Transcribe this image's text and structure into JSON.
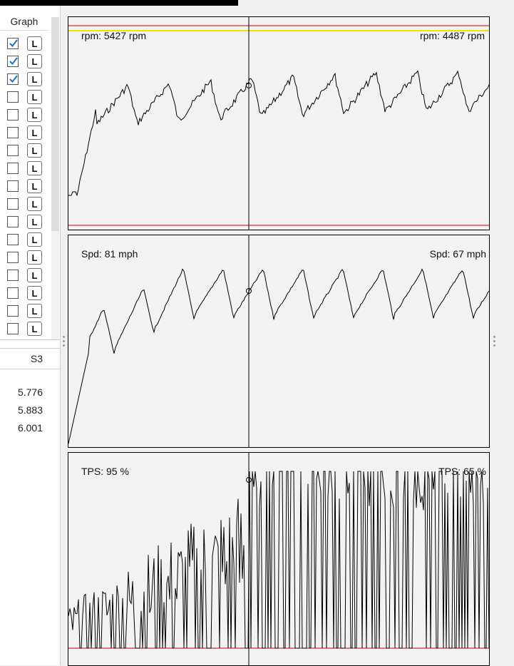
{
  "left_panel": {
    "graph_header": "Graph",
    "rows": [
      {
        "checked": true,
        "btn": "L"
      },
      {
        "checked": true,
        "btn": "L"
      },
      {
        "checked": true,
        "btn": "L"
      },
      {
        "checked": false,
        "btn": "L"
      },
      {
        "checked": false,
        "btn": "L"
      },
      {
        "checked": false,
        "btn": "L"
      },
      {
        "checked": false,
        "btn": "L"
      },
      {
        "checked": false,
        "btn": "L"
      },
      {
        "checked": false,
        "btn": "L"
      },
      {
        "checked": false,
        "btn": "L"
      },
      {
        "checked": false,
        "btn": "L"
      },
      {
        "checked": false,
        "btn": "L"
      },
      {
        "checked": false,
        "btn": "L"
      },
      {
        "checked": false,
        "btn": "L"
      },
      {
        "checked": false,
        "btn": "L"
      },
      {
        "checked": false,
        "btn": "L"
      },
      {
        "checked": false,
        "btn": "L"
      }
    ],
    "table_header": "S3",
    "table_values": [
      "5.776",
      "5.883",
      "6.001"
    ]
  },
  "plots": [
    {
      "left_label": "rpm: 5427 rpm",
      "right_label": "rpm: 4487 rpm",
      "cursor_value": 4487
    },
    {
      "left_label": "Spd: 81 mph",
      "right_label": "Spd: 67 mph",
      "cursor_value": 67
    },
    {
      "left_label": "TPS: 95 %",
      "right_label": "TPS: 65 %",
      "cursor_value": 65
    }
  ],
  "colors": {
    "trace": "#000000",
    "limit_line": "#d00000",
    "warn_line": "#e8e800",
    "plot_bg": "#f2f2f2"
  }
}
